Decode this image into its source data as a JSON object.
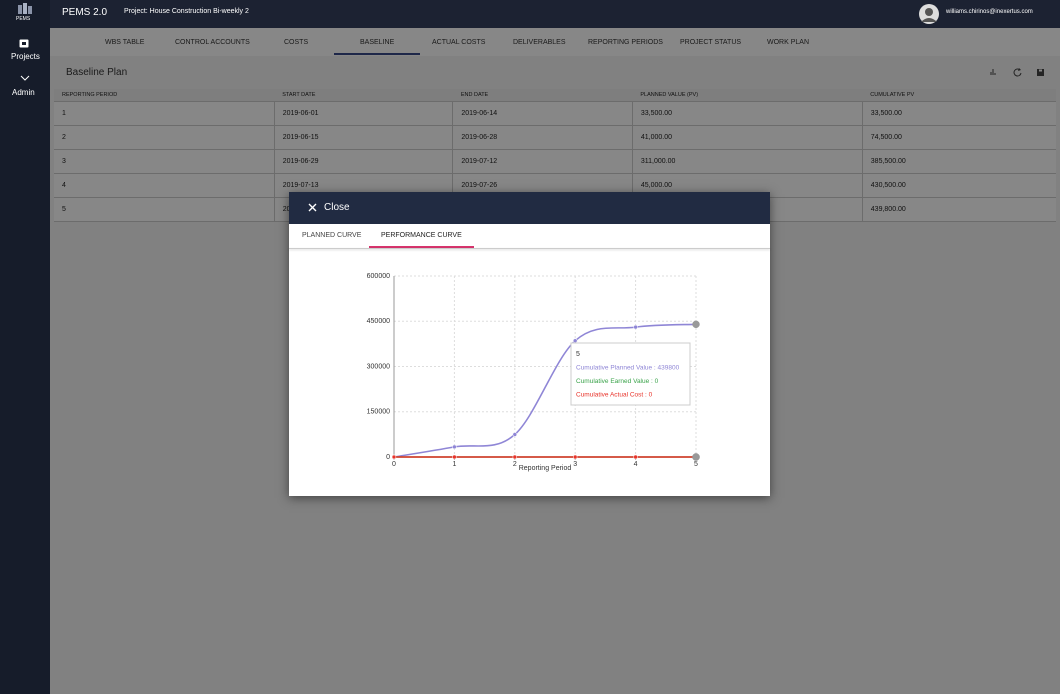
{
  "app": {
    "logo": "PEMS",
    "name": "PEMS 2.0",
    "project": "Project: House Construction Bi-weekly 2",
    "user": "williams.chirinos@inexertus.com"
  },
  "sidebar": [
    "Projects",
    "Admin"
  ],
  "tabs": [
    "WBS TABLE",
    "CONTROL ACCOUNTS",
    "COSTS",
    "BASELINE",
    "ACTUAL COSTS",
    "DELIVERABLES",
    "REPORTING PERIODS",
    "PROJECT STATUS",
    "WORK PLAN"
  ],
  "active_tab_index": 3,
  "page_title": "Baseline Plan",
  "table": {
    "columns": [
      "REPORTING PERIOD",
      "START DATE",
      "END DATE",
      "PLANNED VALUE (PV)",
      "CUMULATIVE PV"
    ],
    "rows": [
      [
        "1",
        "2019-06-01",
        "2019-06-14",
        "33,500.00",
        "33,500.00"
      ],
      [
        "2",
        "2019-06-15",
        "2019-06-28",
        "41,000.00",
        "74,500.00"
      ],
      [
        "3",
        "2019-06-29",
        "2019-07-12",
        "311,000.00",
        "385,500.00"
      ],
      [
        "4",
        "2019-07-13",
        "2019-07-26",
        "45,000.00",
        "430,500.00"
      ],
      [
        "5",
        "20",
        null,
        null,
        "439,800.00"
      ]
    ]
  },
  "modal": {
    "close": "Close",
    "tabs": [
      "PLANNED CURVE",
      "PERFORMANCE CURVE"
    ],
    "active_tab_index": 1
  },
  "chart_data": {
    "type": "line",
    "x_label": "Reporting Period",
    "x": [
      0,
      1,
      2,
      3,
      4,
      5
    ],
    "series": [
      {
        "color": "#8f86d6",
        "values": [
          0,
          33500,
          74500,
          385500,
          430500,
          439800
        ]
      },
      {
        "color": "#3aa34a",
        "values": [
          0,
          0,
          0,
          0,
          0,
          0
        ]
      },
      {
        "color": "#e8332a",
        "values": [
          0,
          0,
          0,
          0,
          0,
          0
        ]
      }
    ],
    "xlim": [
      0,
      5
    ],
    "xticks": [
      0,
      1,
      2,
      3,
      4,
      5
    ],
    "ylim": [
      0,
      600000
    ],
    "yticks": [
      0,
      150000,
      300000,
      450000,
      600000
    ],
    "grid": true,
    "tooltip": {
      "title": "5",
      "lines": [
        {
          "label": "Cumulative Planned Value : 439800"
        },
        {
          "label": "Cumulative Earned Value : 0"
        },
        {
          "label": "Cumulative Actual Cost : 0"
        }
      ]
    }
  }
}
